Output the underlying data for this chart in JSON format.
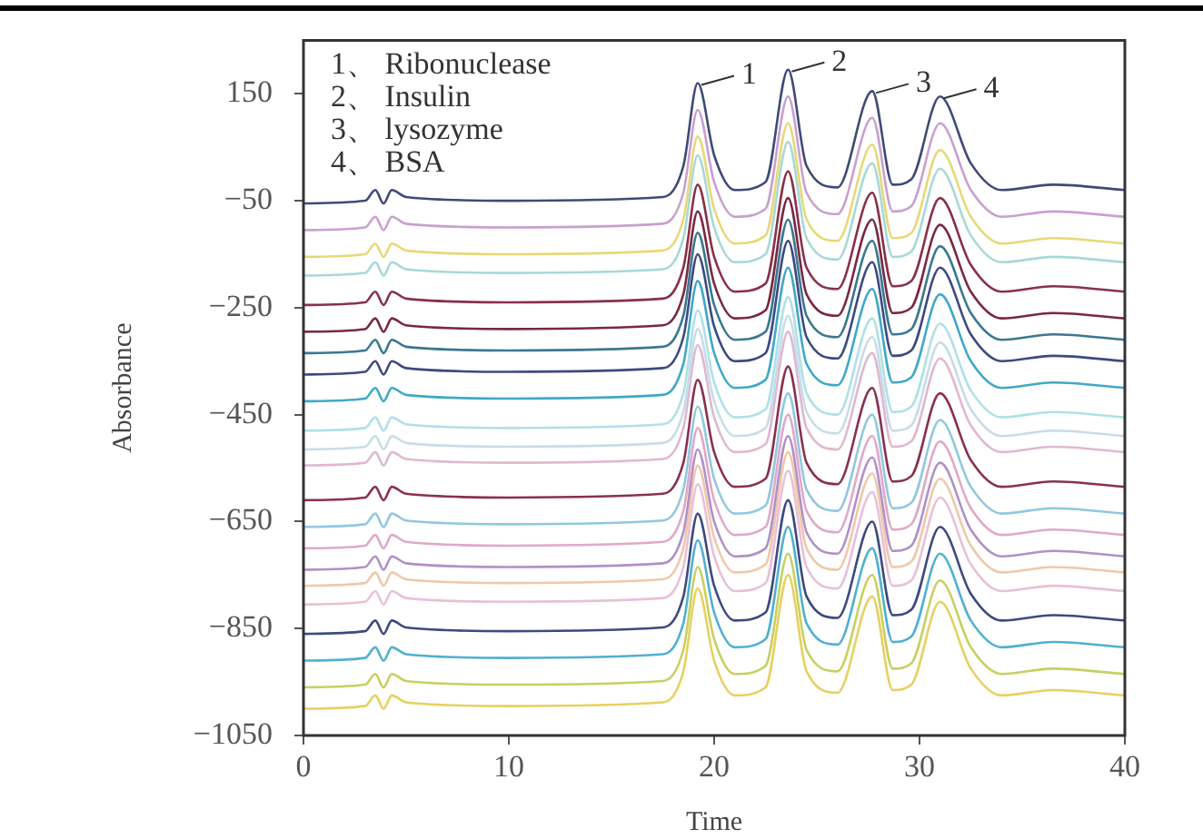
{
  "chart_data": {
    "type": "line",
    "xlabel": "Time",
    "ylabel": "Absorbance",
    "x": [
      0,
      3,
      3.5,
      3.9,
      4.3,
      5,
      10,
      17.5,
      18.5,
      19.2,
      20,
      21,
      22.5,
      23.6,
      24.5,
      26,
      27.7,
      28.7,
      29.6,
      31,
      32.5,
      34,
      36.5,
      40
    ],
    "xlim": [
      0,
      40
    ],
    "xticks": [
      0,
      10,
      20,
      30,
      40
    ],
    "ylim": [
      -1050,
      250
    ],
    "yticks": [
      150,
      -50,
      -250,
      -450,
      -650,
      -850,
      -1050
    ],
    "grid": false,
    "legend": false,
    "marker": "none",
    "line_style": "solid",
    "annotations": [
      "1、 Ribonuclease",
      "2、 Insulin",
      "3、 lysozyme",
      "4、 BSA",
      {
        "text": "1",
        "x": 19.2,
        "y": 170
      },
      {
        "text": "2",
        "x": 23.6,
        "y": 195
      },
      {
        "text": "3",
        "x": 27.7,
        "y": 155
      },
      {
        "text": "4",
        "x": 31,
        "y": 145
      }
    ],
    "series": [
      {
        "color": "#404a78",
        "values": [
          -55,
          -50,
          -30,
          -55,
          -30,
          -43,
          -50,
          -43,
          15,
          170,
          35,
          -30,
          -15,
          195,
          15,
          -25,
          155,
          -20,
          -10,
          145,
          20,
          -30,
          -20,
          -30
        ]
      },
      {
        "color": "#c8a0d0",
        "values": [
          -105,
          -100,
          -80,
          -105,
          -80,
          -93,
          -100,
          -93,
          -35,
          120,
          -15,
          -80,
          -65,
          145,
          -35,
          -75,
          105,
          -70,
          -60,
          95,
          -30,
          -80,
          -70,
          -80
        ]
      },
      {
        "color": "#e8d878",
        "values": [
          -155,
          -150,
          -130,
          -155,
          -130,
          -143,
          -150,
          -143,
          -85,
          70,
          -65,
          -130,
          -115,
          95,
          -85,
          -125,
          55,
          -120,
          -110,
          45,
          -80,
          -130,
          -120,
          -130
        ]
      },
      {
        "color": "#a8d8d8",
        "values": [
          -190,
          -185,
          -165,
          -190,
          -165,
          -178,
          -185,
          -178,
          -120,
          35,
          -100,
          -165,
          -150,
          60,
          -120,
          -160,
          20,
          -155,
          -145,
          10,
          -115,
          -165,
          -155,
          -165
        ]
      },
      {
        "color": "#8a3048",
        "values": [
          -245,
          -240,
          -220,
          -245,
          -220,
          -233,
          -240,
          -233,
          -175,
          -20,
          -155,
          -220,
          -205,
          5,
          -175,
          -215,
          -35,
          -210,
          -200,
          -45,
          -170,
          -220,
          -210,
          -220
        ]
      },
      {
        "color": "#7a2840",
        "values": [
          -295,
          -290,
          -270,
          -295,
          -270,
          -283,
          -290,
          -283,
          -225,
          -70,
          -205,
          -270,
          -255,
          -45,
          -225,
          -265,
          -85,
          -260,
          -250,
          -95,
          -220,
          -270,
          -260,
          -270
        ]
      },
      {
        "color": "#3a7890",
        "values": [
          -335,
          -330,
          -310,
          -335,
          -310,
          -323,
          -330,
          -323,
          -265,
          -110,
          -245,
          -310,
          -295,
          -85,
          -265,
          -305,
          -125,
          -300,
          -290,
          -135,
          -260,
          -310,
          -300,
          -310
        ]
      },
      {
        "color": "#3c4a80",
        "values": [
          -375,
          -370,
          -350,
          -375,
          -350,
          -363,
          -370,
          -363,
          -305,
          -150,
          -285,
          -350,
          -335,
          -125,
          -305,
          -345,
          -165,
          -340,
          -330,
          -175,
          -300,
          -350,
          -340,
          -350
        ]
      },
      {
        "color": "#40a8c8",
        "values": [
          -425,
          -420,
          -400,
          -425,
          -400,
          -413,
          -420,
          -413,
          -355,
          -200,
          -335,
          -400,
          -385,
          -175,
          -355,
          -395,
          -215,
          -390,
          -380,
          -225,
          -350,
          -400,
          -390,
          -400
        ]
      },
      {
        "color": "#b0e0e8",
        "values": [
          -480,
          -475,
          -455,
          -480,
          -455,
          -468,
          -475,
          -468,
          -410,
          -255,
          -390,
          -455,
          -440,
          -230,
          -410,
          -450,
          -270,
          -445,
          -435,
          -280,
          -405,
          -455,
          -445,
          -455
        ]
      },
      {
        "color": "#c8dce8",
        "values": [
          -515,
          -510,
          -490,
          -515,
          -490,
          -503,
          -510,
          -503,
          -445,
          -290,
          -425,
          -490,
          -475,
          -265,
          -445,
          -485,
          -305,
          -480,
          -470,
          -315,
          -440,
          -490,
          -480,
          -490
        ]
      },
      {
        "color": "#e0b8d0",
        "values": [
          -545,
          -540,
          -520,
          -545,
          -520,
          -533,
          -540,
          -533,
          -475,
          -320,
          -455,
          -520,
          -505,
          -295,
          -475,
          -515,
          -335,
          -510,
          -500,
          -345,
          -470,
          -520,
          -510,
          -520
        ]
      },
      {
        "color": "#8a3050",
        "values": [
          -610,
          -605,
          -585,
          -610,
          -585,
          -598,
          -605,
          -598,
          -540,
          -385,
          -520,
          -585,
          -570,
          -360,
          -540,
          -580,
          -400,
          -575,
          -565,
          -410,
          -535,
          -585,
          -575,
          -585
        ]
      },
      {
        "color": "#90c8e0",
        "values": [
          -660,
          -655,
          -635,
          -660,
          -635,
          -648,
          -655,
          -648,
          -590,
          -435,
          -570,
          -635,
          -620,
          -410,
          -590,
          -630,
          -450,
          -625,
          -615,
          -460,
          -585,
          -635,
          -625,
          -635
        ]
      },
      {
        "color": "#e0a8c8",
        "values": [
          -700,
          -695,
          -675,
          -700,
          -675,
          -688,
          -695,
          -688,
          -630,
          -475,
          -610,
          -675,
          -660,
          -450,
          -630,
          -670,
          -490,
          -665,
          -655,
          -500,
          -625,
          -675,
          -665,
          -675
        ]
      },
      {
        "color": "#b090c8",
        "values": [
          -740,
          -735,
          -715,
          -740,
          -715,
          -728,
          -735,
          -728,
          -670,
          -515,
          -650,
          -715,
          -700,
          -490,
          -670,
          -710,
          -530,
          -705,
          -695,
          -540,
          -665,
          -715,
          -705,
          -715
        ]
      },
      {
        "color": "#f0c8a8",
        "values": [
          -770,
          -765,
          -745,
          -770,
          -745,
          -758,
          -765,
          -758,
          -700,
          -545,
          -680,
          -745,
          -730,
          -520,
          -700,
          -740,
          -560,
          -735,
          -725,
          -570,
          -695,
          -745,
          -735,
          -745
        ]
      },
      {
        "color": "#e8c0d8",
        "values": [
          -805,
          -800,
          -780,
          -805,
          -780,
          -793,
          -800,
          -793,
          -735,
          -580,
          -715,
          -780,
          -765,
          -555,
          -735,
          -775,
          -595,
          -770,
          -760,
          -605,
          -730,
          -780,
          -770,
          -780
        ]
      },
      {
        "color": "#3c4a80",
        "values": [
          -860,
          -855,
          -835,
          -860,
          -835,
          -848,
          -855,
          -848,
          -790,
          -635,
          -770,
          -835,
          -820,
          -610,
          -790,
          -830,
          -650,
          -825,
          -815,
          -660,
          -785,
          -835,
          -825,
          -835
        ]
      },
      {
        "color": "#50b0d0",
        "values": [
          -910,
          -905,
          -885,
          -910,
          -885,
          -898,
          -905,
          -898,
          -840,
          -685,
          -820,
          -885,
          -870,
          -660,
          -840,
          -880,
          -700,
          -875,
          -865,
          -710,
          -835,
          -885,
          -875,
          -885
        ]
      },
      {
        "color": "#c8d060",
        "values": [
          -960,
          -955,
          -935,
          -960,
          -935,
          -948,
          -955,
          -948,
          -890,
          -735,
          -870,
          -935,
          -920,
          -710,
          -890,
          -930,
          -750,
          -925,
          -915,
          -760,
          -885,
          -935,
          -925,
          -935
        ]
      },
      {
        "color": "#e8d060",
        "values": [
          -1000,
          -995,
          -975,
          -1000,
          -975,
          -988,
          -995,
          -988,
          -930,
          -775,
          -910,
          -975,
          -960,
          -750,
          -930,
          -970,
          -790,
          -965,
          -955,
          -800,
          -925,
          -975,
          -965,
          -975
        ]
      }
    ]
  }
}
